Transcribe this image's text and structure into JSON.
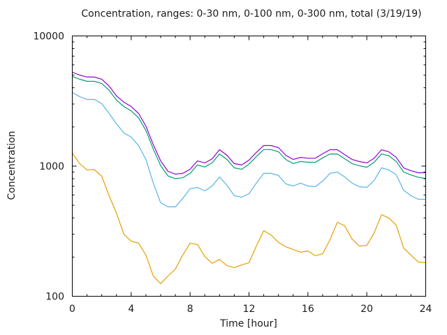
{
  "chart_data": {
    "type": "line",
    "title": "Concentration, ranges: 0-30 nm, 0-100 nm, 0-300 nm, total (3/19/19)",
    "xlabel": "Time [hour]",
    "ylabel": "Concentration",
    "xlim": [
      0,
      24
    ],
    "ylim": [
      100,
      10000
    ],
    "yscale": "log",
    "grid": false,
    "legend": "none",
    "xticks": [
      "0",
      "4",
      "8",
      "12",
      "16",
      "20",
      "24"
    ],
    "xtick_values": [
      0,
      4,
      8,
      12,
      16,
      20,
      24
    ],
    "yticks": [
      "100",
      "1000",
      "10000"
    ],
    "ytick_values": [
      100,
      1000,
      10000
    ],
    "x": [
      0,
      0.5,
      1,
      1.5,
      2,
      2.5,
      3,
      3.5,
      4,
      4.5,
      5,
      5.5,
      6,
      6.5,
      7,
      7.5,
      8,
      8.5,
      9,
      9.5,
      10,
      10.5,
      11,
      11.5,
      12,
      12.5,
      13,
      13.5,
      14,
      14.5,
      15,
      15.5,
      16,
      16.5,
      17,
      17.5,
      18,
      18.5,
      19,
      19.5,
      20,
      20.5,
      21,
      21.5,
      22,
      22.5,
      23,
      23.5,
      24
    ],
    "series": [
      {
        "name": "0-30 nm",
        "color": "#e69f00",
        "values": [
          1256,
          1045,
          935,
          940,
          836,
          592,
          434,
          300,
          265,
          256,
          207,
          143,
          125,
          143,
          162,
          207,
          256,
          250,
          202,
          179,
          192,
          172,
          166,
          174,
          181,
          243,
          319,
          296,
          259,
          240,
          229,
          218,
          223,
          205,
          212,
          272,
          370,
          348,
          275,
          243,
          246,
          307,
          424,
          399,
          352,
          235,
          207,
          183,
          181
        ]
      },
      {
        "name": "0-100 nm",
        "color": "#56b4e9",
        "values": [
          3680,
          3420,
          3250,
          3250,
          3020,
          2540,
          2110,
          1800,
          1670,
          1440,
          1125,
          740,
          523,
          486,
          486,
          564,
          670,
          686,
          645,
          703,
          826,
          713,
          592,
          577,
          614,
          740,
          879,
          879,
          847,
          730,
          703,
          740,
          703,
          695,
          767,
          879,
          900,
          826,
          740,
          695,
          686,
          776,
          970,
          935,
          858,
          653,
          592,
          556,
          556
        ]
      },
      {
        "name": "0-300 nm",
        "color": "#009e73",
        "values": [
          4880,
          4650,
          4480,
          4480,
          4310,
          3820,
          3210,
          2870,
          2660,
          2350,
          1880,
          1350,
          1010,
          840,
          800,
          815,
          880,
          1020,
          985,
          1060,
          1240,
          1125,
          970,
          945,
          1035,
          1185,
          1340,
          1340,
          1290,
          1125,
          1045,
          1085,
          1070,
          1070,
          1155,
          1240,
          1240,
          1140,
          1045,
          1005,
          980,
          1070,
          1240,
          1200,
          1085,
          900,
          855,
          820,
          805
        ]
      },
      {
        "name": "total",
        "color": "#9400d3",
        "values": [
          5260,
          5010,
          4830,
          4830,
          4650,
          4120,
          3460,
          3100,
          2870,
          2540,
          2030,
          1460,
          1097,
          912,
          868,
          879,
          946,
          1097,
          1058,
          1138,
          1336,
          1211,
          1045,
          1020,
          1112,
          1273,
          1440,
          1440,
          1387,
          1211,
          1125,
          1167,
          1150,
          1150,
          1242,
          1336,
          1336,
          1225,
          1125,
          1084,
          1058,
          1150,
          1336,
          1288,
          1167,
          970,
          922,
          889,
          889
        ]
      }
    ]
  }
}
